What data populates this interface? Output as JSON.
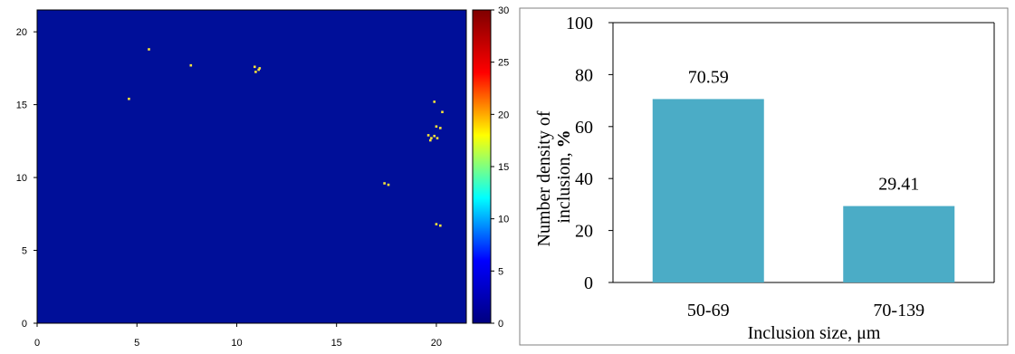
{
  "colors": {
    "map_background": "#000f99",
    "inclusion": "#f5e23a",
    "bar": "#4bacc6",
    "axis": "#000000",
    "frame": "#808080"
  },
  "colormap": {
    "colorbar_stops": [
      "#00007f",
      "#0000ff",
      "#00ffff",
      "#ffff00",
      "#ff0000",
      "#7f0000"
    ]
  },
  "chart_data": [
    {
      "type": "scatter",
      "title": "",
      "xlim": [
        0,
        21.5
      ],
      "ylim": [
        0,
        21.5
      ],
      "x_ticks": [
        "0",
        "5",
        "10",
        "15",
        "20"
      ],
      "y_ticks": [
        "0",
        "5",
        "10",
        "15",
        "20"
      ],
      "grid": false,
      "colorbar": {
        "range": [
          0,
          30
        ],
        "ticks": [
          "0",
          "5",
          "10",
          "15",
          "20",
          "25",
          "30"
        ]
      },
      "points": [
        {
          "x": 5.6,
          "y": 18.8
        },
        {
          "x": 7.7,
          "y": 17.7
        },
        {
          "x": 10.9,
          "y": 17.6
        },
        {
          "x": 11.1,
          "y": 17.4
        },
        {
          "x": 10.95,
          "y": 17.25
        },
        {
          "x": 11.15,
          "y": 17.5
        },
        {
          "x": 4.6,
          "y": 15.4
        },
        {
          "x": 19.9,
          "y": 15.2
        },
        {
          "x": 20.3,
          "y": 14.5
        },
        {
          "x": 20.0,
          "y": 13.5
        },
        {
          "x": 20.2,
          "y": 13.4
        },
        {
          "x": 19.6,
          "y": 12.9
        },
        {
          "x": 19.75,
          "y": 12.7
        },
        {
          "x": 19.9,
          "y": 12.85
        },
        {
          "x": 20.05,
          "y": 12.7
        },
        {
          "x": 19.7,
          "y": 12.55
        },
        {
          "x": 17.4,
          "y": 9.6
        },
        {
          "x": 17.6,
          "y": 9.5
        },
        {
          "x": 20.0,
          "y": 6.8
        },
        {
          "x": 20.2,
          "y": 6.7
        }
      ]
    },
    {
      "type": "bar",
      "categories": [
        "50-69",
        "70-139"
      ],
      "values": [
        70.59,
        29.41
      ],
      "data_labels": [
        "70.59",
        "29.41"
      ],
      "ylim": [
        0,
        100
      ],
      "y_ticks": [
        "0",
        "20",
        "40",
        "60",
        "80",
        "100"
      ],
      "xlabel": "Inclusion size, μm",
      "ylabel_line1": "Number density of",
      "ylabel_line2": "inclusion, ",
      "ylabel_bold": "%",
      "grid": false
    }
  ]
}
